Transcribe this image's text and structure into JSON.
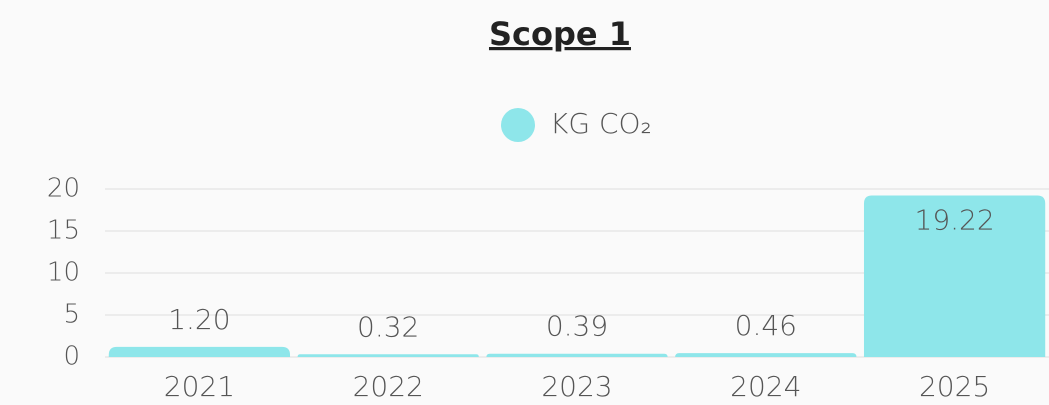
{
  "chart_data": {
    "type": "bar",
    "title": "Scope 1",
    "categories": [
      "2021",
      "2022",
      "2023",
      "2024",
      "2025"
    ],
    "series": [
      {
        "name": "KG CO₂",
        "color": "#8ee6ea",
        "values": [
          1.2,
          0.32,
          0.39,
          0.46,
          19.22
        ],
        "value_labels": [
          "1.20",
          "0.32",
          "0.39",
          "0.46",
          "19.22"
        ]
      }
    ],
    "ylim": [
      0,
      20
    ],
    "yticks": [
      0,
      5,
      10,
      15,
      20
    ],
    "grid": true,
    "legend": "top"
  }
}
